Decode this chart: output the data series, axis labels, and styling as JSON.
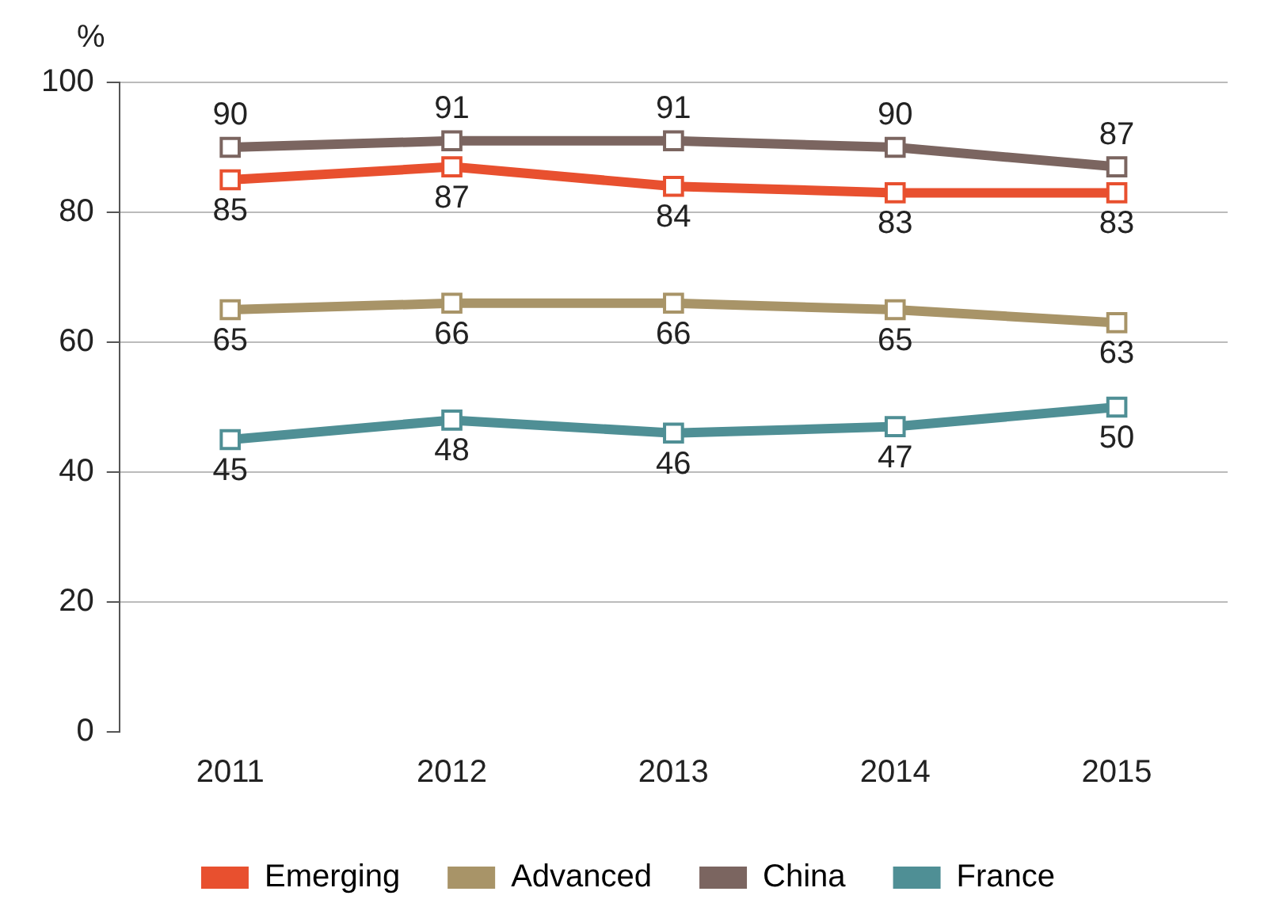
{
  "chart_data": {
    "type": "line",
    "ylabel": "%",
    "categories": [
      "2011",
      "2012",
      "2013",
      "2014",
      "2015"
    ],
    "series": [
      {
        "name": "Emerging",
        "color": "#e8502f",
        "values": [
          85,
          87,
          84,
          83,
          83
        ]
      },
      {
        "name": "Advanced",
        "color": "#a89468",
        "values": [
          65,
          66,
          66,
          65,
          63
        ]
      },
      {
        "name": "China",
        "color": "#7b6560",
        "values": [
          90,
          91,
          91,
          90,
          87
        ]
      },
      {
        "name": "France",
        "color": "#4f8f95",
        "values": [
          45,
          48,
          46,
          47,
          50
        ]
      }
    ],
    "ylim": [
      0,
      100
    ],
    "yticks": [
      0,
      20,
      40,
      60,
      80,
      100
    ],
    "grid": "y",
    "legend": "bottom",
    "marker": "square",
    "line_style": "solid",
    "data_labels": true
  }
}
